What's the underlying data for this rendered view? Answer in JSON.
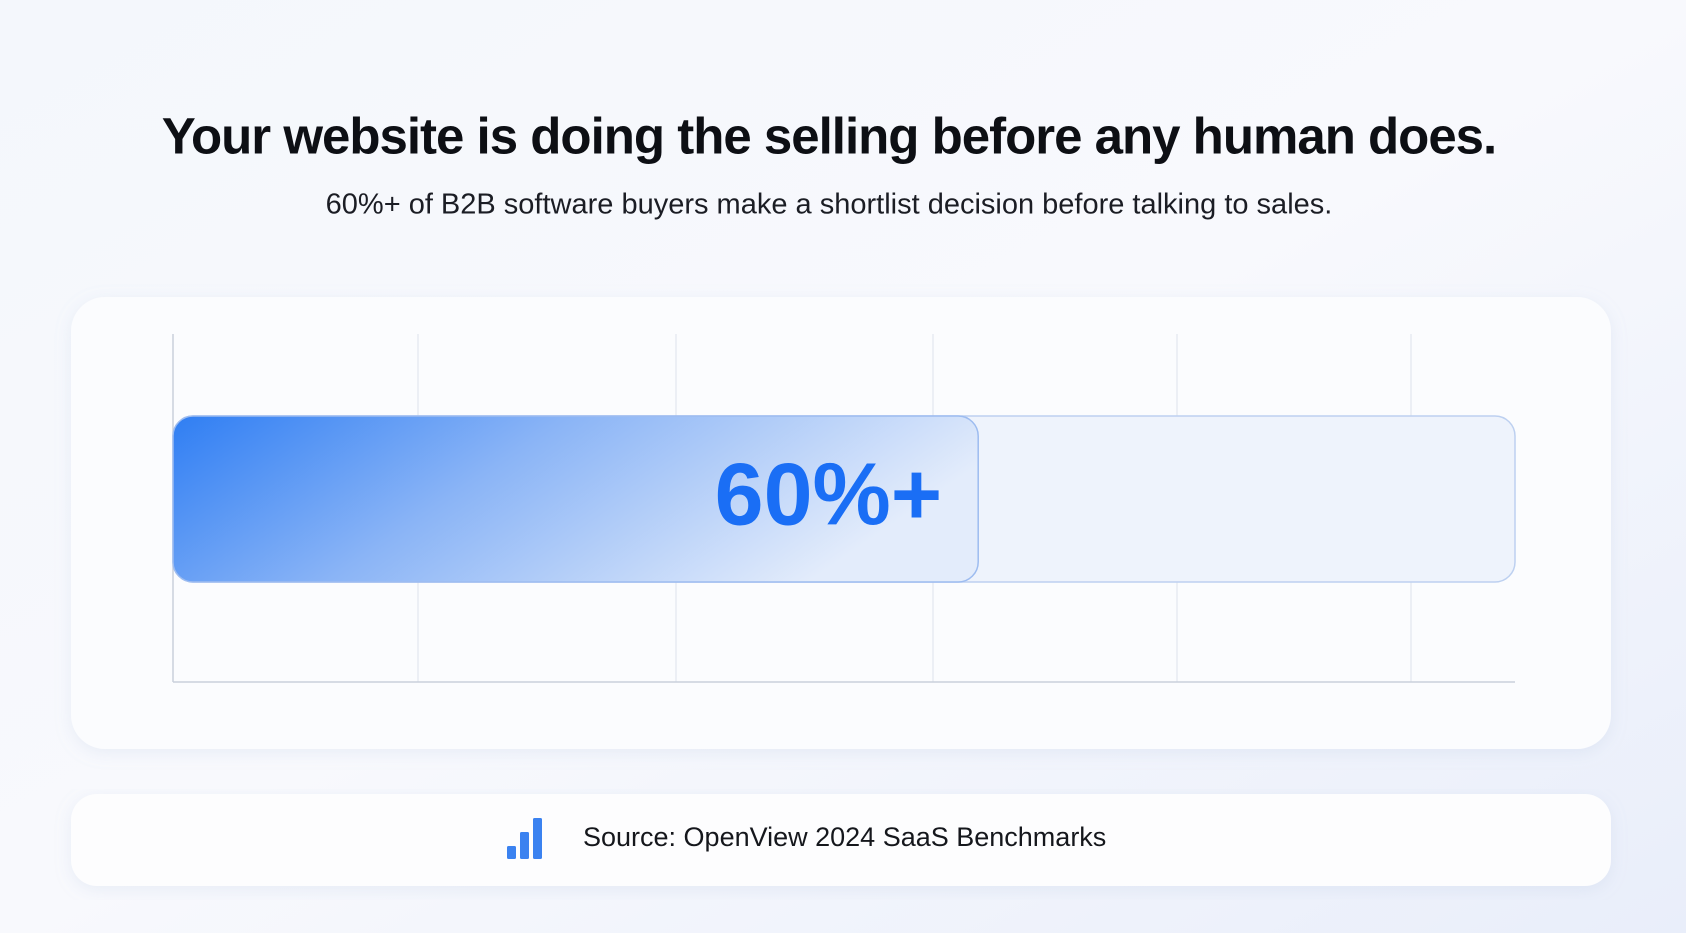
{
  "chart_data": {
    "type": "bar",
    "orientation": "horizontal",
    "title": "Your website is doing the selling before any human does.",
    "subtitle": "60%+ of B2B software buyers make a shortlist decision before talking to sales.",
    "categories": [
      null
    ],
    "values": [
      60
    ],
    "value_labels": [
      "60%+"
    ],
    "color": "#1a6ef5",
    "xlim": [
      0,
      100
    ],
    "source": "Source: OpenView 2024 SaaS Benchmarks"
  }
}
